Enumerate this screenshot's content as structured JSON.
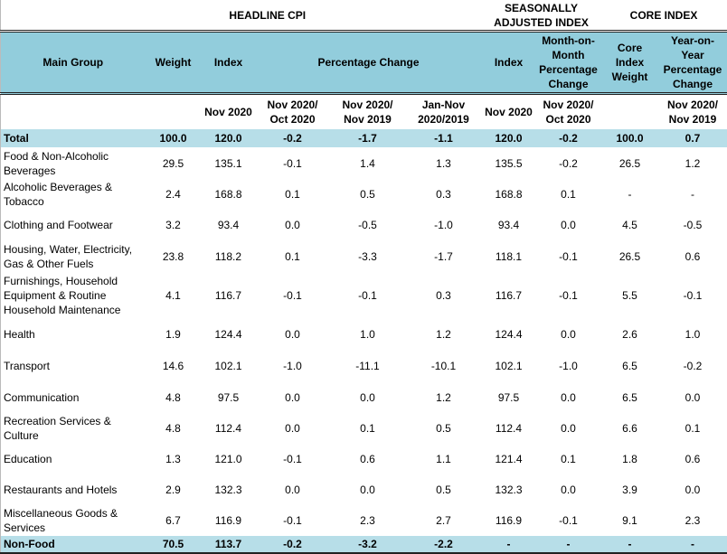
{
  "header": {
    "headline_cpi": "HEADLINE CPI",
    "seasonally_adjusted": "SEASONALLY ADJUSTED INDEX",
    "core_index": "CORE INDEX",
    "main_group": "Main Group",
    "weight": "Weight",
    "index": "Index",
    "percentage_change": "Percentage Change",
    "sa_index": "Index",
    "mom": "Month-on-Month Percentage Change",
    "core_weight": "Core Index Weight",
    "yoy": "Year-on-Year Percentage Change"
  },
  "subheader": [
    "",
    "",
    "Nov 2020",
    "Nov 2020/ Oct 2020",
    "Nov 2020/ Nov 2019",
    "Jan-Nov 2020/2019",
    "Nov 2020",
    "Nov 2020/ Oct 2020",
    "",
    "Nov 2020/ Nov 2019"
  ],
  "rows": [
    {
      "group": "Total",
      "values": [
        "100.0",
        "120.0",
        "-0.2",
        "-1.7",
        "-1.1",
        "120.0",
        "-0.2",
        "100.0",
        "0.7"
      ],
      "highlight": true
    },
    {
      "group": "Food & Non-Alcoholic Beverages",
      "values": [
        "29.5",
        "135.1",
        "-0.1",
        "1.4",
        "1.3",
        "135.5",
        "-0.2",
        "26.5",
        "1.2"
      ]
    },
    {
      "group": "Alcoholic Beverages & Tobacco",
      "values": [
        "2.4",
        "168.8",
        "0.1",
        "0.5",
        "0.3",
        "168.8",
        "0.1",
        "-",
        "-"
      ]
    },
    {
      "group": "Clothing and Footwear",
      "values": [
        "3.2",
        "93.4",
        "0.0",
        "-0.5",
        "-1.0",
        "93.4",
        "0.0",
        "4.5",
        "-0.5"
      ]
    },
    {
      "group": "Housing, Water, Electricity, Gas & Other Fuels",
      "values": [
        "23.8",
        "118.2",
        "0.1",
        "-3.3",
        "-1.7",
        "118.1",
        "-0.1",
        "26.5",
        "0.6"
      ]
    },
    {
      "group": "Furnishings, Household Equipment  & Routine Household Maintenance",
      "values": [
        "4.1",
        "116.7",
        "-0.1",
        "-0.1",
        "0.3",
        "116.7",
        "-0.1",
        "5.5",
        "-0.1"
      ]
    },
    {
      "group": "Health",
      "values": [
        "1.9",
        "124.4",
        "0.0",
        "1.0",
        "1.2",
        "124.4",
        "0.0",
        "2.6",
        "1.0"
      ]
    },
    {
      "group": "Transport",
      "values": [
        "14.6",
        "102.1",
        "-1.0",
        "-11.1",
        "-10.1",
        "102.1",
        "-1.0",
        "6.5",
        "-0.2"
      ]
    },
    {
      "group": "Communication",
      "values": [
        "4.8",
        "97.5",
        "0.0",
        "0.0",
        "1.2",
        "97.5",
        "0.0",
        "6.5",
        "0.0"
      ]
    },
    {
      "group": "Recreation Services & Culture",
      "values": [
        "4.8",
        "112.4",
        "0.0",
        "0.1",
        "0.5",
        "112.4",
        "0.0",
        "6.6",
        "0.1"
      ]
    },
    {
      "group": "Education",
      "values": [
        "1.3",
        "121.0",
        "-0.1",
        "0.6",
        "1.1",
        "121.4",
        "0.1",
        "1.8",
        "0.6"
      ]
    },
    {
      "group": "Restaurants and Hotels",
      "values": [
        "2.9",
        "132.3",
        "0.0",
        "0.0",
        "0.5",
        "132.3",
        "0.0",
        "3.9",
        "0.0"
      ]
    },
    {
      "group": "Miscellaneous Goods & Services",
      "values": [
        "6.7",
        "116.9",
        "-0.1",
        "2.3",
        "2.7",
        "116.9",
        "-0.1",
        "9.1",
        "2.3"
      ]
    },
    {
      "group": "Non-Food",
      "values": [
        "70.5",
        "113.7",
        "-0.2",
        "-3.2",
        "-2.2",
        "-",
        "-",
        "-",
        "-"
      ],
      "highlight": true
    }
  ],
  "colors": {
    "header_bg": "#92cddc",
    "highlight_bg": "#b7dee8"
  }
}
